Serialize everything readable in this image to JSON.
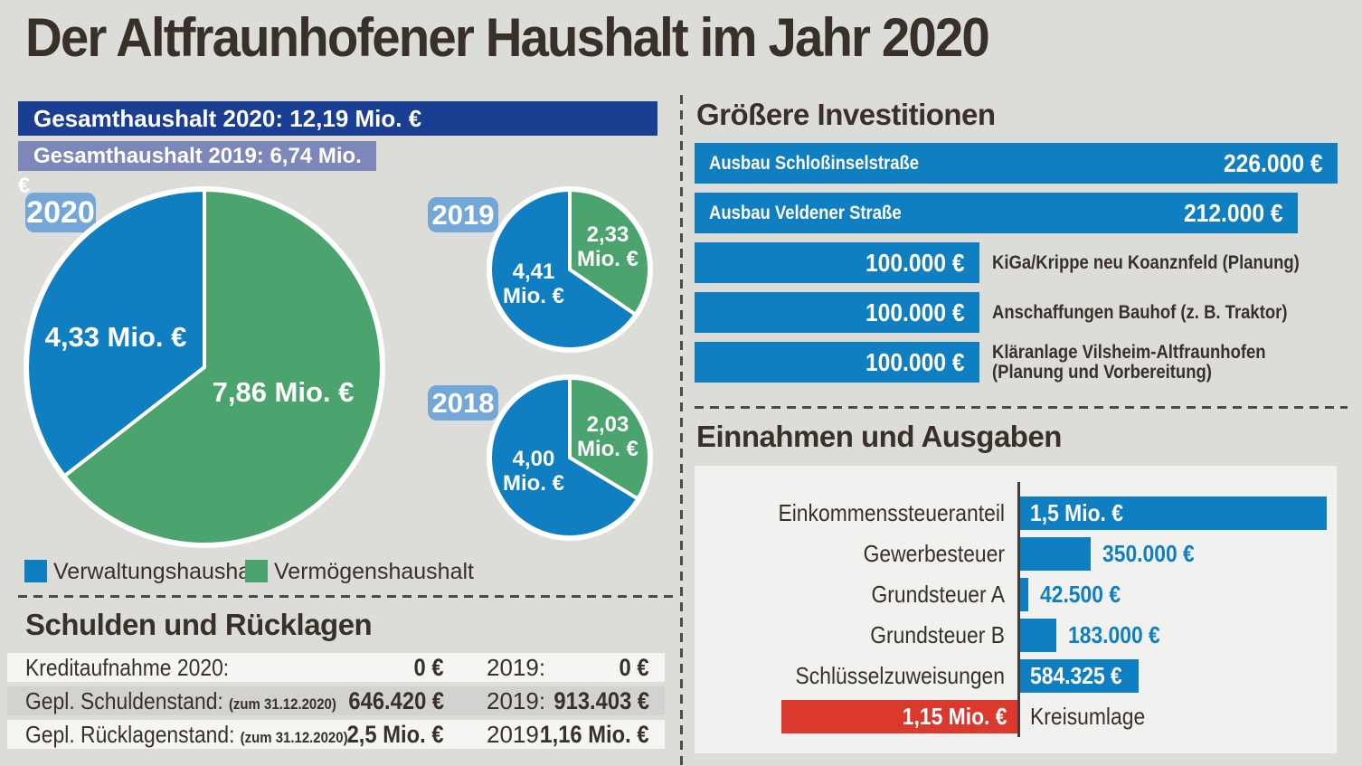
{
  "page": {
    "title": "Der Altfraunhofener Haushalt im Jahr 2020"
  },
  "colors": {
    "blue": "#107fc1",
    "green": "#4ba46d",
    "red": "#db392d",
    "navy": "#1a3e92",
    "slate": "#7e87ba",
    "chip_blue": "#72a7d7",
    "dark": "#39302a",
    "page_bg": "#dcddd9",
    "panel_bg": "#f1f1ef",
    "row_light": "#f5f5f3",
    "row_gray": "#d2d2d0",
    "dash": "#4b4b49",
    "axis": "#3d3d3b"
  },
  "totals": {
    "banner_2020": "Gesamthaushalt 2020: 12,19 Mio. €",
    "banner_2019": "Gesamthaushalt 2019: 6,74 Mio. €"
  },
  "legend": [
    {
      "label": "Verwaltungshaushalt",
      "color": "#107fc1"
    },
    {
      "label": "Vermögenshaushalt",
      "color": "#4ba46d"
    }
  ],
  "chart_data": [
    {
      "type": "pie",
      "title": "2020",
      "unit": "Mio. €",
      "start_angle": "top",
      "direction": "clockwise",
      "slices": [
        {
          "key": "vermoegenshaushalt",
          "label": "Vermögenshaushalt",
          "value": 7.86,
          "display": "7,86 Mio. €",
          "color": "#4ba46d"
        },
        {
          "key": "verwaltungshaushalt",
          "label": "Verwaltungshaushalt",
          "value": 4.33,
          "display": "4,33 Mio. €",
          "color": "#107fc1"
        }
      ]
    },
    {
      "type": "pie",
      "title": "2019",
      "unit": "Mio. €",
      "start_angle": "top",
      "direction": "clockwise",
      "slices": [
        {
          "key": "vermoegenshaushalt",
          "label": "Vermögenshaushalt",
          "value": 2.33,
          "display": "2,33 Mio. €",
          "display_lines": [
            "2,33",
            "Mio. €"
          ],
          "color": "#4ba46d"
        },
        {
          "key": "verwaltungshaushalt",
          "label": "Verwaltungshaushalt",
          "value": 4.41,
          "display": "4,41 Mio. €",
          "display_lines": [
            "4,41",
            "Mio. €"
          ],
          "color": "#107fc1"
        }
      ]
    },
    {
      "type": "pie",
      "title": "2018",
      "unit": "Mio. €",
      "start_angle": "top",
      "direction": "clockwise",
      "slices": [
        {
          "key": "vermoegenshaushalt",
          "label": "Vermögenshaushalt",
          "value": 2.03,
          "display": "2,03 Mio. €",
          "display_lines": [
            "2,03",
            "Mio. €"
          ],
          "color": "#4ba46d"
        },
        {
          "key": "verwaltungshaushalt",
          "label": "Verwaltungshaushalt",
          "value": 4.0,
          "display": "4,00 Mio. €",
          "display_lines": [
            "4,00",
            "Mio. €"
          ],
          "color": "#107fc1"
        }
      ]
    },
    {
      "type": "bar",
      "title": "Größere Investitionen",
      "unit": "€",
      "orientation": "horizontal",
      "items": [
        {
          "key": "schlossinselstrasse",
          "label_lines": [
            "Ausbau Schloßinselstraße"
          ],
          "value": 226000,
          "display": "226.000 €",
          "label_position": "inside"
        },
        {
          "key": "veldener-strasse",
          "label_lines": [
            "Ausbau Veldener Straße"
          ],
          "value": 212000,
          "display": "212.000 €",
          "label_position": "inside"
        },
        {
          "key": "kiga-krippe",
          "label_lines": [
            "KiGa/Krippe neu Koanznfeld (Planung)"
          ],
          "value": 100000,
          "display": "100.000 €",
          "label_position": "right"
        },
        {
          "key": "bauhof",
          "label_lines": [
            "Anschaffungen Bauhof (z. B. Traktor)"
          ],
          "value": 100000,
          "display": "100.000 €",
          "label_position": "right"
        },
        {
          "key": "klaeranlage",
          "label_lines": [
            "Kläranlage Vilsheim-Altfraunhofen",
            "(Planung und Vorbereitung)"
          ],
          "value": 100000,
          "display": "100.000 €",
          "label_position": "right"
        }
      ]
    },
    {
      "type": "bar",
      "title": "Einnahmen und Ausgaben",
      "unit": "€",
      "orientation": "horizontal",
      "axis_max": 1500000,
      "items": [
        {
          "key": "einkommenssteueranteil",
          "label": "Einkommenssteueranteil",
          "value": 1500000,
          "display": "1,5 Mio. €",
          "bar_color": "#107fc1",
          "direction": "right",
          "value_position": "inside"
        },
        {
          "key": "gewerbesteuer",
          "label": "Gewerbesteuer",
          "value": 350000,
          "display": "350.000 €",
          "bar_color": "#107fc1",
          "direction": "right",
          "value_position": "outside"
        },
        {
          "key": "grundsteuer-a",
          "label": "Grundsteuer A",
          "value": 42500,
          "display": "42.500 €",
          "bar_color": "#107fc1",
          "direction": "right",
          "value_position": "outside"
        },
        {
          "key": "grundsteuer-b",
          "label": "Grundsteuer B",
          "value": 183000,
          "display": "183.000 €",
          "bar_color": "#107fc1",
          "direction": "right",
          "value_position": "outside"
        },
        {
          "key": "schluesselzuweisungen",
          "label": "Schlüsselzuweisungen",
          "value": 584325,
          "display": "584.325 €",
          "bar_color": "#107fc1",
          "direction": "right",
          "value_position": "inside"
        },
        {
          "key": "kreisumlage",
          "label": "Kreisumlage",
          "value": 1150000,
          "display": "1,15 Mio. €",
          "bar_color": "#db392d",
          "direction": "left",
          "value_position": "inside"
        }
      ]
    }
  ],
  "schulden_table": {
    "title": "Schulden und Rücklagen",
    "rows": [
      {
        "label": "Kreditaufnahme 2020:",
        "note": "",
        "value_2020": "0 €",
        "year_label": "2019:",
        "value_2019": "0 €"
      },
      {
        "label": "Gepl. Schuldenstand:",
        "note": "(zum 31.12.2020)",
        "value_2020": "646.420 €",
        "year_label": "2019:",
        "value_2019": "913.403 €"
      },
      {
        "label": "Gepl. Rücklagenstand:",
        "note": "(zum 31.12.2020)",
        "value_2020": "2,5 Mio. €",
        "year_label": "2019:",
        "value_2019": "1,16 Mio. €"
      }
    ]
  }
}
